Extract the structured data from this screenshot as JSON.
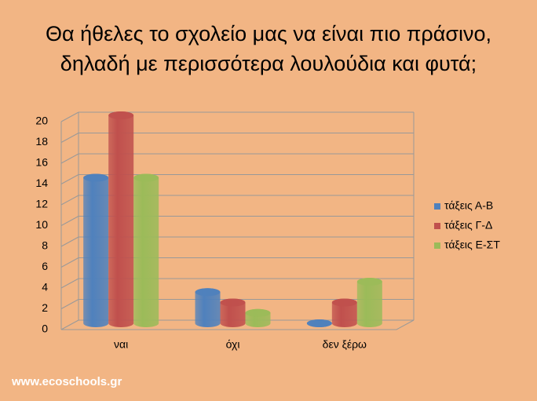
{
  "chart_data": {
    "type": "bar",
    "title": "Θα ήθελες το σχολείο μας να είναι πιο πράσινο,",
    "subtitle": "δηλαδή με περισσότερα λουλούδια και φυτά;",
    "categories": [
      "ναι",
      "όχι",
      "δεν ξέρω"
    ],
    "series": [
      {
        "name": "τάξεις Α-Β",
        "color": "#4f81bd",
        "values": [
          14,
          3,
          0
        ]
      },
      {
        "name": "τάξεις Γ-Δ",
        "color": "#c0504d",
        "values": [
          20,
          2,
          2
        ]
      },
      {
        "name": "τάξεις Ε-ΣΤ",
        "color": "#9bbb59",
        "values": [
          14,
          1,
          4
        ]
      }
    ],
    "ylim": [
      0,
      20
    ],
    "yticks": [
      0,
      2,
      4,
      6,
      8,
      10,
      12,
      14,
      16,
      18,
      20
    ],
    "grid": true,
    "legend": "right",
    "watermark": "www.ecoschools.gr"
  }
}
